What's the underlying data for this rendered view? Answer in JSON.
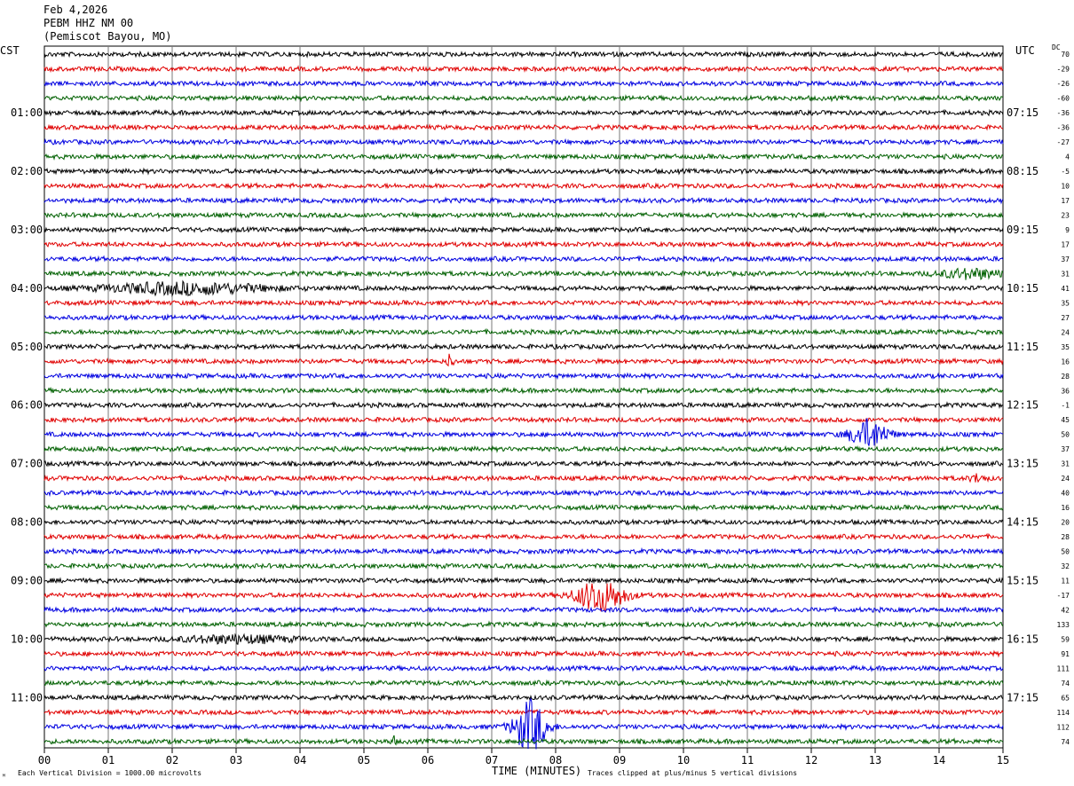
{
  "header": {
    "date": "Feb 4,2026",
    "station": "PEBM HHZ NM 00",
    "location": "(Pemiscot Bayou, MO)"
  },
  "left_tz": "CST",
  "right_tz": "UTC",
  "dc_label": "DC",
  "footer": {
    "scale_note": "Each Vertical Division = 1000.00 microvolts",
    "time_label": "TIME (MINUTES)",
    "clip_note": "Traces clipped at plus/minus 5 vertical divisions"
  },
  "trace_colors": [
    "#000000",
    "#e00000",
    "#0000e0",
    "#006000"
  ],
  "chart_data": {
    "type": "line",
    "title": "PEBM HHZ NM 00",
    "xlabel": "TIME (MINUTES)",
    "xlim": [
      0,
      15
    ],
    "x_ticks": [
      "00",
      "01",
      "02",
      "03",
      "04",
      "05",
      "06",
      "07",
      "08",
      "09",
      "10",
      "11",
      "12",
      "13",
      "14",
      "15"
    ],
    "row_count": 48,
    "left_time_labels": [
      {
        "row": 4,
        "label": "01:00"
      },
      {
        "row": 8,
        "label": "02:00"
      },
      {
        "row": 12,
        "label": "03:00"
      },
      {
        "row": 16,
        "label": "04:00"
      },
      {
        "row": 20,
        "label": "05:00"
      },
      {
        "row": 24,
        "label": "06:00"
      },
      {
        "row": 28,
        "label": "07:00"
      },
      {
        "row": 32,
        "label": "08:00"
      },
      {
        "row": 36,
        "label": "09:00"
      },
      {
        "row": 40,
        "label": "10:00"
      },
      {
        "row": 44,
        "label": "11:00"
      }
    ],
    "right_time_labels": [
      {
        "row": 4,
        "label": "07:15"
      },
      {
        "row": 8,
        "label": "08:15"
      },
      {
        "row": 12,
        "label": "09:15"
      },
      {
        "row": 16,
        "label": "10:15"
      },
      {
        "row": 20,
        "label": "11:15"
      },
      {
        "row": 24,
        "label": "12:15"
      },
      {
        "row": 28,
        "label": "13:15"
      },
      {
        "row": 32,
        "label": "14:15"
      },
      {
        "row": 36,
        "label": "15:15"
      },
      {
        "row": 40,
        "label": "16:15"
      },
      {
        "row": 44,
        "label": "17:15"
      }
    ],
    "dc_offsets": [
      "70",
      "-29",
      "-26",
      "-60",
      "-36",
      "-36",
      "-27",
      "4",
      "-5",
      "10",
      "17",
      "23",
      "9",
      "17",
      "37",
      "31",
      "41",
      "35",
      "27",
      "24",
      "35",
      "16",
      "28",
      "36",
      "-1",
      "45",
      "50",
      "37",
      "31",
      "24",
      "40",
      "16",
      "20",
      "28",
      "50",
      "32",
      "11",
      "-17",
      "42",
      "133",
      "59",
      "91",
      "111",
      "74",
      "65",
      "114",
      "112",
      "74"
    ],
    "events": [
      {
        "row": 26,
        "minute": 12.9,
        "amplitude": 16,
        "duration": 0.7
      },
      {
        "row": 37,
        "minute": 8.7,
        "amplitude": 18,
        "duration": 0.9
      },
      {
        "row": 46,
        "minute": 7.6,
        "amplitude": 30,
        "duration": 0.6
      },
      {
        "row": 21,
        "minute": 6.35,
        "amplitude": 8,
        "duration": 0.12
      },
      {
        "row": 16,
        "minute": 2.2,
        "amplitude": 6,
        "duration": 3.0
      },
      {
        "row": 40,
        "minute": 3.0,
        "amplitude": 4,
        "duration": 2.0
      },
      {
        "row": 15,
        "minute": 14.5,
        "amplitude": 5,
        "duration": 1.2
      },
      {
        "row": 29,
        "minute": 14.6,
        "amplitude": 4,
        "duration": 0.3
      },
      {
        "row": 47,
        "minute": 5.45,
        "amplitude": 6,
        "duration": 0.1
      }
    ]
  }
}
